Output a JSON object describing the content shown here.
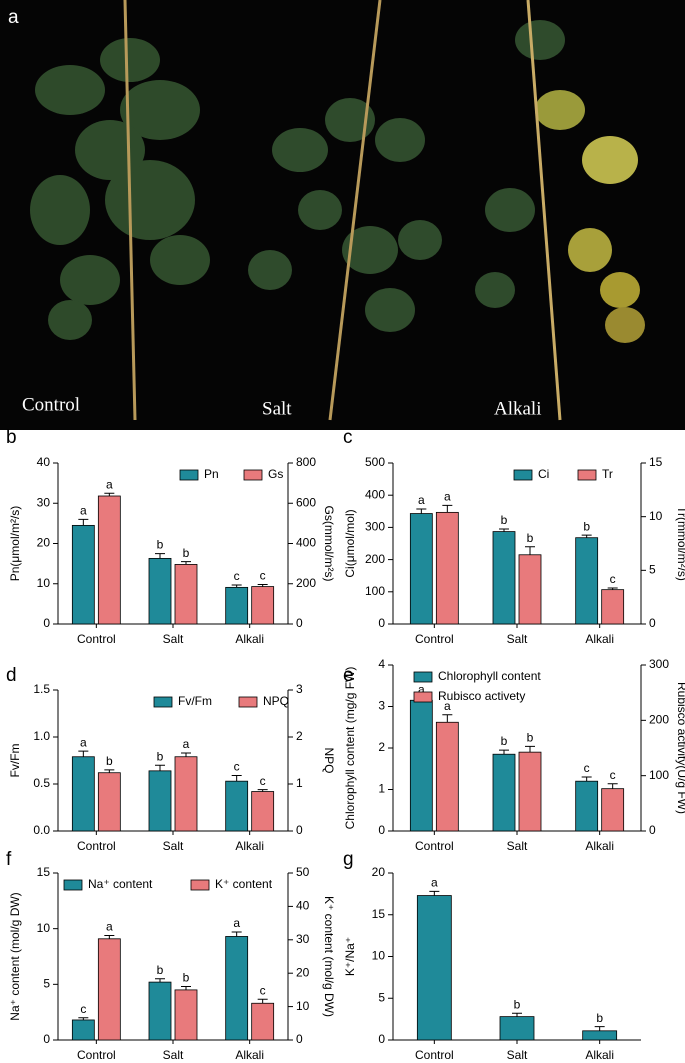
{
  "photo": {
    "panel": "a",
    "labels": [
      "Control",
      "Salt",
      "Alkali"
    ]
  },
  "chart_data": [
    {
      "type": "bar",
      "panel": "b",
      "categories": [
        "Control",
        "Salt",
        "Alkali"
      ],
      "ylabel": "Pn(μmol/m²/s)",
      "y2label": "Gs(mmol/m²s)",
      "ylim": [
        0,
        40
      ],
      "yticks": [
        0,
        10,
        20,
        30,
        40
      ],
      "y2lim": [
        0,
        800
      ],
      "y2ticks": [
        0,
        200,
        400,
        600,
        800
      ],
      "series": [
        {
          "name": "Pn",
          "color": "#1f8a99",
          "values": [
            24.5,
            16.3,
            9.1
          ],
          "errors": [
            1.5,
            1.2,
            0.6
          ],
          "letters": [
            "a",
            "b",
            "c"
          ]
        },
        {
          "name": "Gs",
          "color": "#e87a7c",
          "axis": "y2",
          "values": [
            636,
            296,
            186
          ],
          "errors": [
            14,
            14,
            10
          ],
          "letters": [
            "a",
            "b",
            "c"
          ]
        }
      ]
    },
    {
      "type": "bar",
      "panel": "c",
      "categories": [
        "Control",
        "Salt",
        "Alkali"
      ],
      "ylabel": "Ci(μmol/mol)",
      "y2label": "Tr(mmol/m²/s)",
      "ylim": [
        0,
        500
      ],
      "yticks": [
        0,
        100,
        200,
        300,
        400,
        500
      ],
      "y2lim": [
        0,
        15
      ],
      "y2ticks": [
        0,
        5,
        10,
        15
      ],
      "series": [
        {
          "name": "Ci",
          "color": "#1f8a99",
          "values": [
            343,
            287,
            268
          ],
          "errors": [
            14,
            8,
            8
          ],
          "letters": [
            "a",
            "b",
            "b"
          ]
        },
        {
          "name": "Tr",
          "color": "#e87a7c",
          "axis": "y2",
          "values": [
            10.4,
            6.45,
            3.2
          ],
          "errors": [
            0.65,
            0.75,
            0.15
          ],
          "letters": [
            "a",
            "b",
            "c"
          ]
        }
      ]
    },
    {
      "type": "bar",
      "panel": "d",
      "categories": [
        "Control",
        "Salt",
        "Alkali"
      ],
      "ylabel": "Fv/Fm",
      "y2label": "NPQ",
      "ylim": [
        0,
        1.5
      ],
      "yticks": [
        {
          "value": 0,
          "label": "0.0"
        },
        0.5,
        {
          "value": 1,
          "label": "1.0"
        },
        1.5
      ],
      "y2lim": [
        0,
        3
      ],
      "y2ticks": [
        0,
        1,
        2,
        3
      ],
      "series": [
        {
          "name": "Fv/Fm",
          "color": "#1f8a99",
          "values": [
            0.79,
            0.64,
            0.53
          ],
          "errors": [
            0.06,
            0.06,
            0.06
          ],
          "letters": [
            "a",
            "b",
            "c"
          ]
        },
        {
          "name": "NPQ",
          "color": "#e87a7c",
          "axis": "y2",
          "values": [
            1.24,
            1.58,
            0.84
          ],
          "errors": [
            0.06,
            0.08,
            0.04
          ],
          "letters": [
            "b",
            "a",
            "c"
          ]
        }
      ]
    },
    {
      "type": "bar",
      "panel": "e",
      "categories": [
        "Control",
        "Salt",
        "Alkali"
      ],
      "ylabel": "Chlorophyll content (mg/g FW)",
      "y2label": "Rubisco activity(U/g FW)",
      "ylim": [
        0,
        4
      ],
      "yticks": [
        0,
        1,
        2,
        3,
        4
      ],
      "y2lim": [
        0,
        300
      ],
      "y2ticks": [
        0,
        100,
        200,
        300
      ],
      "series": [
        {
          "name": "Chlorophyll content",
          "color": "#1f8a99",
          "values": [
            3.15,
            1.85,
            1.2
          ],
          "errors": [
            0.05,
            0.1,
            0.1
          ],
          "letters": [
            "a",
            "b",
            "c"
          ]
        },
        {
          "name": "Rubisco activety",
          "color": "#e87a7c",
          "axis": "y2",
          "values": [
            196.5,
            142.5,
            76.5
          ],
          "errors": [
            13.5,
            10.5,
            9
          ],
          "letters": [
            "a",
            "b",
            "c"
          ]
        }
      ]
    },
    {
      "type": "bar",
      "panel": "f",
      "categories": [
        "Control",
        "Salt",
        "Alkali"
      ],
      "ylabel": "Na⁺ content (mol/g DW)",
      "y2label": "K⁺ content (mol/g DW)",
      "ylim": [
        0,
        15
      ],
      "yticks": [
        0,
        5,
        10,
        15
      ],
      "y2lim": [
        0,
        50
      ],
      "y2ticks": [
        0,
        10,
        20,
        30,
        40,
        50
      ],
      "series": [
        {
          "name": "Na⁺ content",
          "color": "#1f8a99",
          "values": [
            1.8,
            5.2,
            9.3
          ],
          "errors": [
            0.2,
            0.3,
            0.4
          ],
          "letters": [
            "c",
            "b",
            "a"
          ]
        },
        {
          "name": "K⁺ content",
          "color": "#e87a7c",
          "axis": "y2",
          "values": [
            30.3,
            15,
            11
          ],
          "errors": [
            1,
            1,
            1.2
          ],
          "letters": [
            "a",
            "b",
            "c"
          ]
        }
      ]
    },
    {
      "type": "bar",
      "panel": "g",
      "categories": [
        "Control",
        "Salt",
        "Alkali"
      ],
      "ylabel": "K⁺/Na⁺",
      "ylim": [
        0,
        20
      ],
      "yticks": [
        0,
        5,
        10,
        15,
        20
      ],
      "series": [
        {
          "color": "#1f8a99",
          "values": [
            17.3,
            2.8,
            1.1
          ],
          "errors": [
            0.5,
            0.4,
            0.5
          ],
          "letters": [
            "a",
            "b",
            "b"
          ]
        }
      ]
    }
  ]
}
